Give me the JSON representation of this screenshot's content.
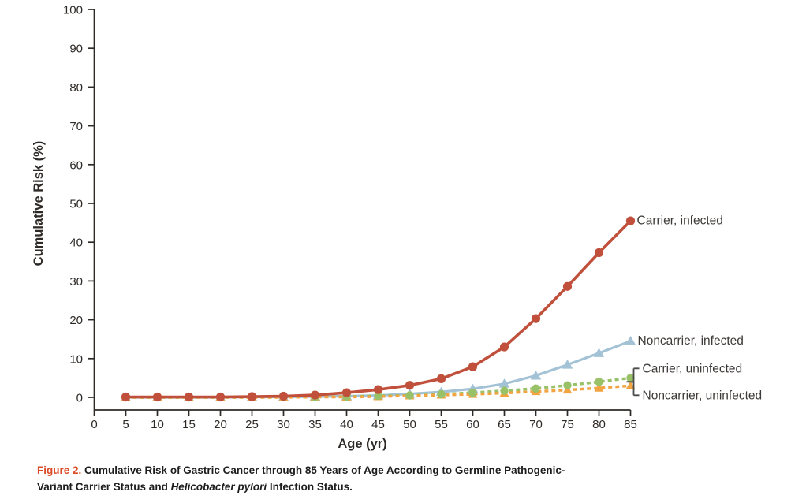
{
  "figure": {
    "accent_color": "#DC4B28",
    "caption": {
      "label": "Figure 2.",
      "text_before": "Cumulative Risk of Gastric Cancer through 85 Years of Age According to Germline Pathogenic-Variant Carrier Status and ",
      "italic_text": "Helicobacter pylori",
      "text_after": " Infection Status."
    }
  },
  "chart_data": {
    "type": "line",
    "title": "",
    "xlabel": "Age (yr)",
    "ylabel": "Cumulative Risk (%)",
    "xlim": [
      0,
      85
    ],
    "ylim": [
      0,
      100
    ],
    "grid": false,
    "legend_position": "end-of-line-labels",
    "xticks": [
      0,
      5,
      10,
      15,
      20,
      25,
      30,
      35,
      40,
      45,
      50,
      55,
      60,
      65,
      70,
      75,
      80,
      85
    ],
    "yticks": [
      0,
      10,
      20,
      30,
      40,
      50,
      60,
      70,
      80,
      90,
      100
    ],
    "x": [
      5,
      10,
      15,
      20,
      25,
      30,
      35,
      40,
      45,
      50,
      55,
      60,
      65,
      70,
      75,
      80,
      85
    ],
    "series": [
      {
        "name": "Carrier, infected",
        "color": "#C0503B",
        "marker": "circle",
        "line_style": "solid",
        "values": [
          0.1,
          0.1,
          0.1,
          0.1,
          0.2,
          0.3,
          0.6,
          1.2,
          2.0,
          3.1,
          4.8,
          7.9,
          13.0,
          20.3,
          28.6,
          37.3,
          45.5
        ]
      },
      {
        "name": "Noncarrier, infected",
        "color": "#A3C2D6",
        "marker": "triangle",
        "line_style": "solid",
        "values": [
          0.0,
          0.0,
          0.0,
          0.0,
          0.1,
          0.1,
          0.2,
          0.3,
          0.5,
          0.9,
          1.4,
          2.2,
          3.5,
          5.6,
          8.4,
          11.4,
          14.5
        ]
      },
      {
        "name": "Carrier, uninfected",
        "color": "#98C168",
        "marker": "circle",
        "line_style": "dashed",
        "values": [
          0.0,
          0.0,
          0.0,
          0.0,
          0.0,
          0.1,
          0.1,
          0.2,
          0.4,
          0.5,
          0.8,
          1.2,
          1.7,
          2.3,
          3.1,
          4.0,
          5.0
        ]
      },
      {
        "name": "Noncarrier, uninfected",
        "color": "#F1A441",
        "marker": "triangle",
        "line_style": "dashed",
        "values": [
          0.0,
          0.0,
          0.0,
          0.0,
          0.0,
          0.0,
          0.1,
          0.1,
          0.2,
          0.4,
          0.6,
          0.8,
          1.1,
          1.5,
          1.9,
          2.4,
          3.0
        ]
      }
    ],
    "bracket_color": "#4a4a4a",
    "axis_color": "#2d2926"
  }
}
